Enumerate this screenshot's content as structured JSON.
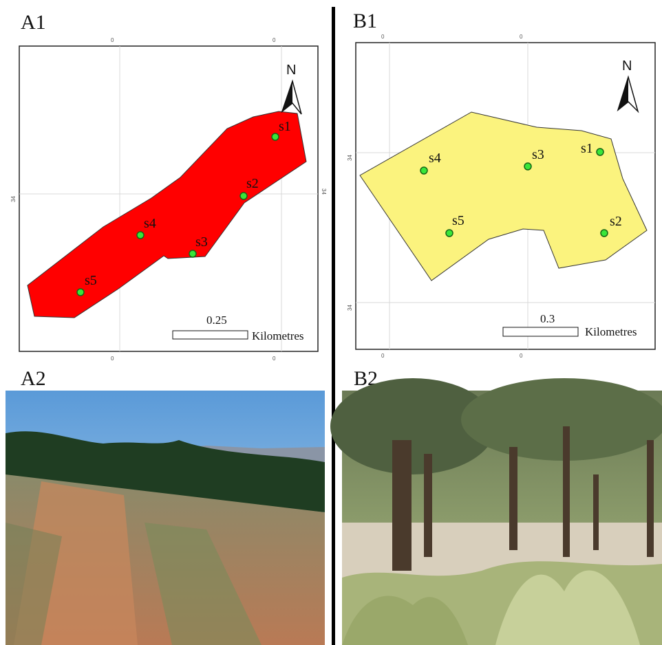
{
  "panels": [
    {
      "label": "A1",
      "north": "N",
      "sites": [
        "s1",
        "s2",
        "s3",
        "s4",
        "s5"
      ],
      "scale_value": "0.25",
      "scale_unit": "Kilometres",
      "grid_labels": [
        "0",
        "0",
        "34",
        "34",
        "0",
        "0"
      ]
    },
    {
      "label": "B1",
      "north": "N",
      "sites": [
        "s1",
        "s2",
        "s3",
        "s4",
        "s5"
      ],
      "scale_value": "0.3",
      "scale_unit": "Kilometres",
      "grid_labels": [
        "0",
        "0",
        "34",
        "34",
        "0",
        "0"
      ]
    },
    {
      "label": "A2"
    },
    {
      "label": "B2"
    }
  ]
}
